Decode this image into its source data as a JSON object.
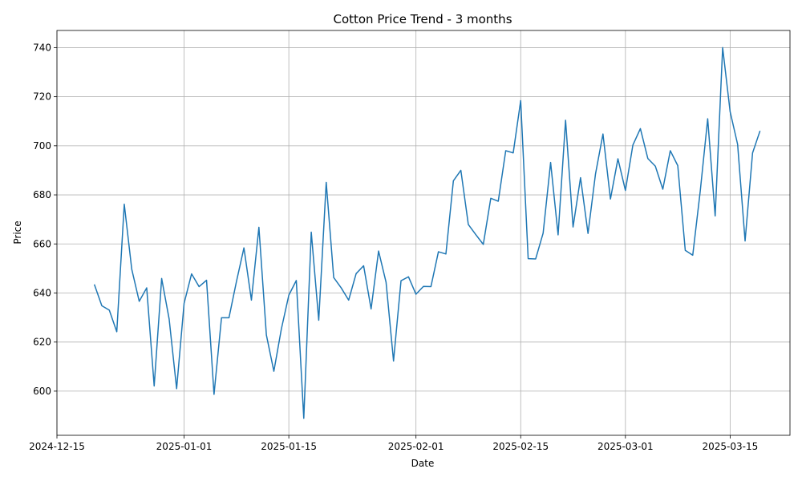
{
  "chart_data": {
    "type": "line",
    "title": "Cotton Price Trend - 3 months",
    "xlabel": "Date",
    "ylabel": "Price",
    "x_start": "2024-12-20",
    "xlim": [
      "2024-12-15",
      "2025-03-23"
    ],
    "ylim": [
      582,
      747
    ],
    "grid": true,
    "x_ticks": [
      "2024-12-15",
      "2025-01-01",
      "2025-01-15",
      "2025-02-01",
      "2025-02-15",
      "2025-03-01",
      "2025-03-15"
    ],
    "y_ticks": [
      600,
      620,
      640,
      660,
      680,
      700,
      720,
      740
    ],
    "series": [
      {
        "color": "#1f77b4",
        "values": [
          643.5,
          634.8,
          633,
          624.2,
          676.2,
          649.7,
          636.6,
          642.1,
          602.1,
          645.9,
          629.4,
          601,
          635.8,
          647.8,
          642.6,
          645.2,
          598.7,
          629.9,
          629.9,
          644.7,
          658.4,
          637.1,
          666.8,
          622.9,
          608.1,
          625.3,
          639.1,
          645.1,
          588.9,
          664.8,
          628.9,
          685.1,
          646.3,
          642.1,
          637.1,
          647.9,
          651.1,
          633.5,
          657.1,
          644.4,
          612.3,
          645,
          646.6,
          639.5,
          642.7,
          642.6,
          656.8,
          655.9,
          685.7,
          690,
          667.9,
          663.8,
          659.8,
          678.6,
          677.4,
          698,
          697.1,
          718.4,
          654,
          653.9,
          664.4,
          693.2,
          663.7,
          710.4,
          666.9,
          687,
          664.3,
          688.5,
          704.8,
          678.3,
          694.7,
          681.8,
          700.3,
          707,
          694.8,
          691.7,
          682.3,
          698,
          691.9,
          657.4,
          655.4,
          681.4,
          711,
          671.4,
          740,
          713.9,
          700.6,
          661.2,
          697.1,
          706.1
        ]
      }
    ]
  }
}
